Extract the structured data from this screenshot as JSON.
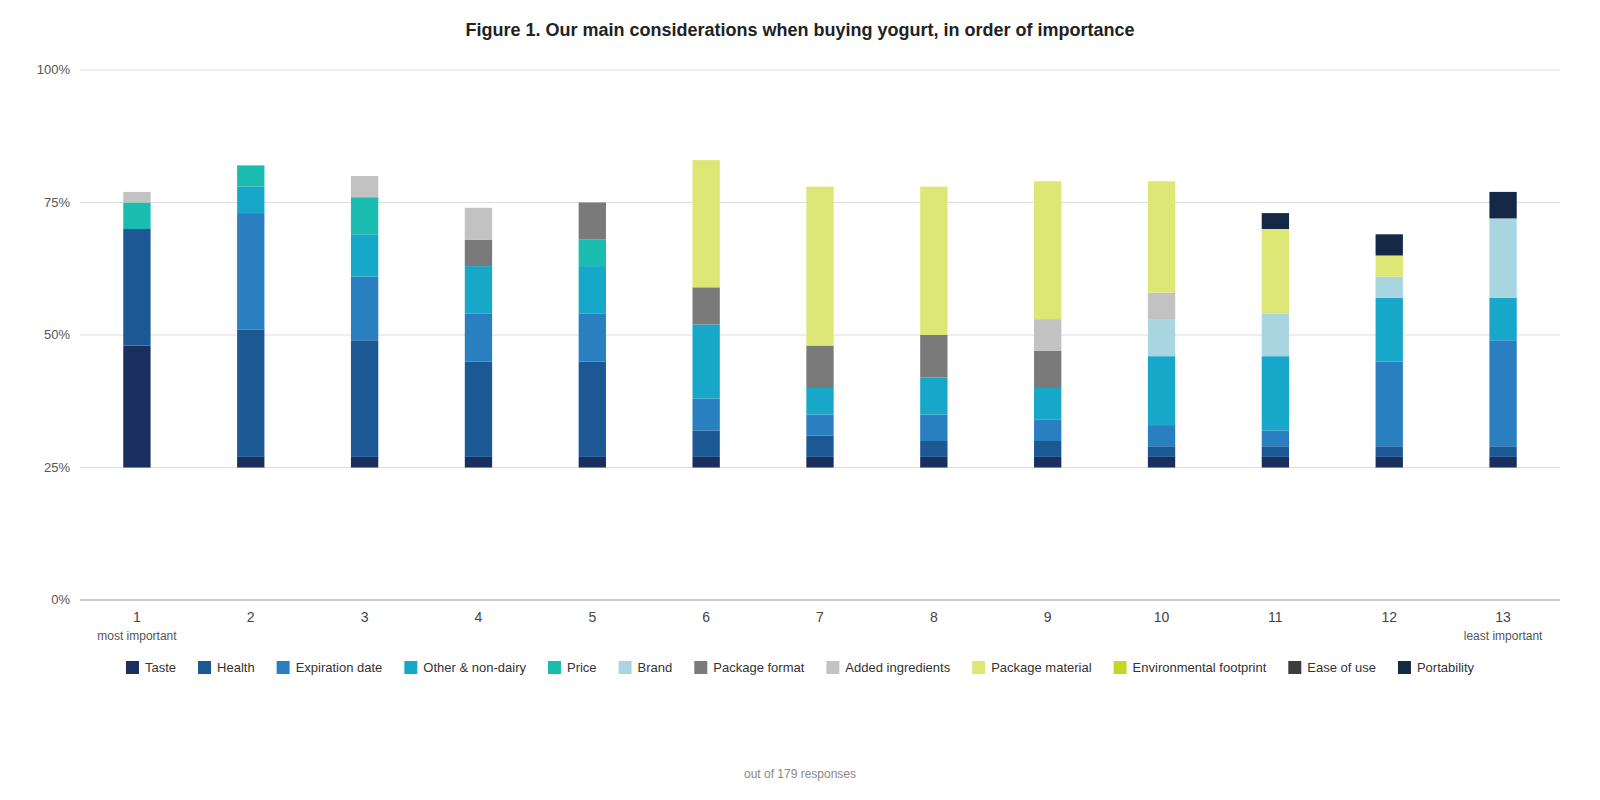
{
  "chart_data": {
    "type": "bar",
    "title": "Figure 1. Our main considerations when buying yogurt, in order of importance",
    "stacked": true,
    "grid": true,
    "base": 25,
    "categories": [
      "1",
      "2",
      "3",
      "4",
      "5",
      "6",
      "7",
      "8",
      "9",
      "10",
      "11",
      "12",
      "13"
    ],
    "ylim": [
      0,
      100
    ],
    "yticks": [
      {
        "value": 0,
        "label": "0%"
      },
      {
        "value": 25,
        "label": "25%"
      },
      {
        "value": 50,
        "label": "50%"
      },
      {
        "value": 75,
        "label": "75%"
      },
      {
        "value": 100,
        "label": "100%"
      }
    ],
    "series": [
      {
        "name": "Taste",
        "color": "#1a2f5e",
        "values": [
          23,
          2,
          2,
          2,
          2,
          2,
          2,
          2,
          2,
          2,
          2,
          2,
          2
        ]
      },
      {
        "name": "Health",
        "color": "#1b5894",
        "values": [
          22,
          24,
          22,
          18,
          18,
          5,
          4,
          3,
          3,
          2,
          2,
          2,
          2
        ]
      },
      {
        "name": "Expiration date",
        "color": "#2a7fc1",
        "values": [
          0,
          22,
          12,
          9,
          9,
          6,
          4,
          5,
          4,
          4,
          3,
          16,
          20
        ]
      },
      {
        "name": "Other & non-dairy",
        "color": "#17a7c8",
        "values": [
          0,
          5,
          8,
          9,
          9,
          14,
          5,
          7,
          6,
          13,
          14,
          12,
          8
        ]
      },
      {
        "name": "Price",
        "color": "#1abcb0",
        "values": [
          5,
          4,
          7,
          0,
          5,
          0,
          0,
          0,
          0,
          0,
          0,
          0,
          0
        ]
      },
      {
        "name": "Brand",
        "color": "#a8d5df",
        "values": [
          0,
          0,
          0,
          0,
          0,
          0,
          0,
          0,
          0,
          7,
          8,
          4,
          15
        ]
      },
      {
        "name": "Package format",
        "color": "#7a7a7a",
        "values": [
          0,
          0,
          0,
          5,
          7,
          7,
          8,
          8,
          7,
          0,
          0,
          0,
          0
        ]
      },
      {
        "name": "Added ingredients",
        "color": "#c2c2c2",
        "values": [
          2,
          0,
          4,
          6,
          0,
          0,
          0,
          0,
          6,
          5,
          0,
          0,
          0
        ]
      },
      {
        "name": "Package material",
        "color": "#dce775",
        "values": [
          0,
          0,
          0,
          0,
          0,
          24,
          30,
          28,
          26,
          21,
          16,
          4,
          0
        ]
      },
      {
        "name": "Environmental footprint",
        "color": "#c6d626",
        "values": [
          0,
          0,
          0,
          0,
          0,
          0,
          0,
          0,
          0,
          0,
          0,
          0,
          0
        ]
      },
      {
        "name": "Ease of use",
        "color": "#3d3d3d",
        "values": [
          0,
          0,
          0,
          0,
          0,
          0,
          0,
          0,
          0,
          0,
          0,
          0,
          0
        ]
      },
      {
        "name": "Portability",
        "color": "#152947",
        "values": [
          0,
          0,
          0,
          0,
          0,
          0,
          0,
          0,
          0,
          0,
          3,
          4,
          5
        ]
      }
    ],
    "annotations": [
      {
        "text": "most important",
        "category": "1"
      },
      {
        "text": "least important",
        "category": "13"
      },
      {
        "text": "out of 179 responses"
      }
    ]
  }
}
